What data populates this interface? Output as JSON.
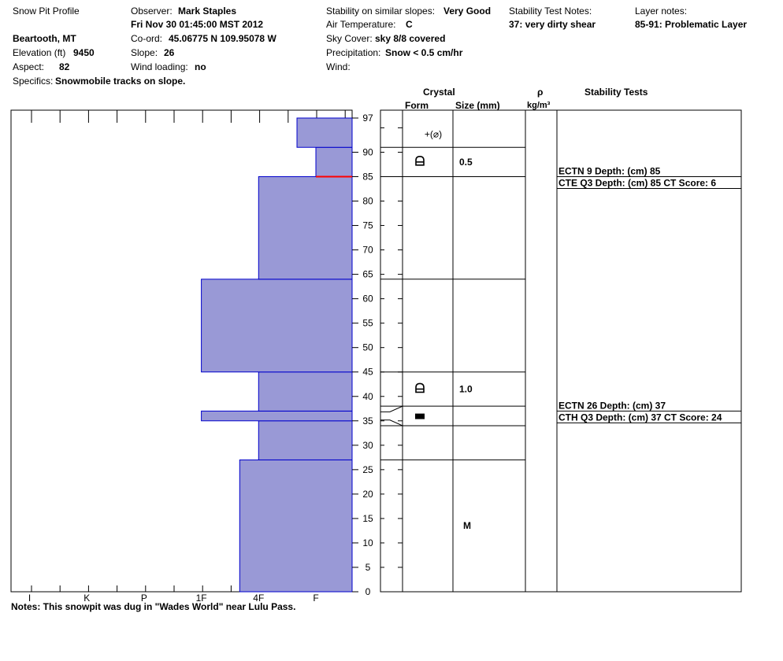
{
  "header": {
    "col1": {
      "title": "Snow Pit Profile",
      "location": "Beartooth, MT",
      "elevation_label": "Elevation (ft)",
      "elevation_value": "9450",
      "aspect_label": "Aspect:",
      "aspect_value": "82",
      "specifics_label": "Specifics:",
      "specifics_value": "Snowmobile tracks on slope."
    },
    "col2": {
      "observer_label": "Observer:",
      "observer_value": "Mark Staples",
      "datetime": "Fri Nov 30 01:45:00 MST 2012",
      "coord_label": "Co-ord:",
      "coord_value": "45.06775 N 109.95078 W",
      "slope_label": "Slope:",
      "slope_value": "26",
      "wind_loading_label": "Wind loading:",
      "wind_loading_value": "no"
    },
    "col3": {
      "stability_label": "Stability on similar slopes:",
      "stability_value": "Very Good",
      "air_temp_label": "Air Temperature:",
      "air_temp_value": "C",
      "sky_label": "Sky Cover:",
      "sky_value": "sky 8/8 covered",
      "precip_label": "Precipitation:",
      "precip_value": "Snow < 0.5 cm/hr",
      "wind_label": "Wind:"
    },
    "col4": {
      "test_notes_label": "Stability Test Notes:",
      "test_notes_value": "37: very dirty shear"
    },
    "col5": {
      "layer_notes_label": "Layer notes:",
      "layer_notes_value": "85-91: Problematic Layer"
    }
  },
  "table_headers": {
    "crystal": "Crystal",
    "form": "Form",
    "size": "Size (mm)",
    "rho": "ρ",
    "density_unit": "kg/m³",
    "stability_tests": "Stability Tests"
  },
  "notes": "Notes:  This snowpit was dug in \"Wades World\" near Lulu Pass.",
  "colors": {
    "layer_fill": "#9999d6",
    "layer_stroke": "#0000cc",
    "weak_layer_marker": "#ff0000"
  },
  "chart_data": {
    "type": "bar",
    "orientation": "horizontal",
    "snow_height_cm": 97,
    "y_ticks": [
      0,
      5,
      10,
      15,
      20,
      25,
      30,
      35,
      40,
      45,
      50,
      55,
      60,
      65,
      70,
      75,
      80,
      85,
      90,
      97
    ],
    "hardness_scale": [
      "I",
      "K",
      "P",
      "1F",
      "4F",
      "F"
    ],
    "hardness_values": {
      "F": 1,
      "4F": 2,
      "1F": 3,
      "P": 4,
      "K": 5,
      "I": 6
    },
    "layers": [
      {
        "bottom": 0,
        "top": 27,
        "hardness": "4F-"
      },
      {
        "bottom": 27,
        "top": 35,
        "hardness": "4F"
      },
      {
        "bottom": 35,
        "top": 37,
        "hardness": "1F"
      },
      {
        "bottom": 37,
        "top": 45,
        "hardness": "4F"
      },
      {
        "bottom": 45,
        "top": 64,
        "hardness": "1F"
      },
      {
        "bottom": 64,
        "top": 85,
        "hardness": "4F"
      },
      {
        "bottom": 85,
        "top": 91,
        "hardness": "F"
      },
      {
        "bottom": 91,
        "top": 97,
        "hardness": "F+"
      }
    ],
    "layer_hardness_numeric": [
      2.33,
      2,
      3,
      2,
      3,
      2,
      1,
      1.33
    ],
    "weak_layer_depth": 85,
    "crystal_layers": [
      {
        "bottom": 91,
        "top": 97,
        "form": "+(⌀)",
        "size": ""
      },
      {
        "bottom": 85,
        "top": 91,
        "form": "faceted",
        "size": "0.5"
      },
      {
        "bottom": 38,
        "top": 45,
        "form": "faceted",
        "size": "1.0"
      },
      {
        "bottom": 34,
        "top": 38,
        "form": "crust",
        "size": ""
      },
      {
        "bottom": 27,
        "top": 34,
        "form": "",
        "size": ""
      },
      {
        "bottom": 0,
        "top": 27,
        "form": "",
        "size": "M"
      }
    ],
    "crystal_boundaries": [
      91,
      85,
      64,
      45,
      38,
      34,
      27
    ],
    "stability_tests": [
      {
        "depth": 85,
        "label": "ECTN 9   Depth: (cm) 85"
      },
      {
        "depth": 85,
        "label": "CTE Q3 Depth: (cm) 85 CT Score: 6"
      },
      {
        "depth": 37,
        "label": "ECTN 26   Depth: (cm) 37"
      },
      {
        "depth": 37,
        "label": "CTH Q3 Depth: (cm) 37 CT Score: 24"
      }
    ]
  }
}
